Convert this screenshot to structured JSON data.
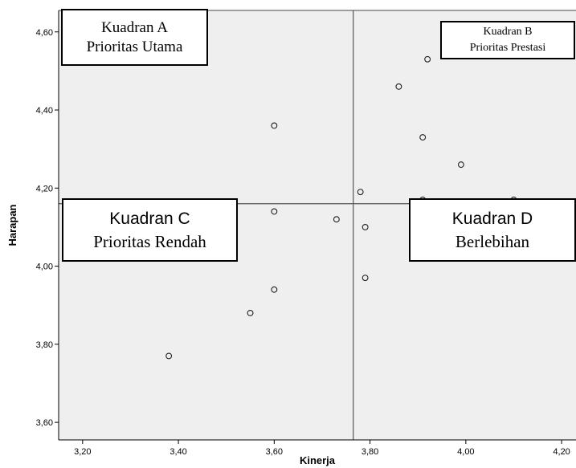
{
  "chart_data": {
    "type": "scatter",
    "xlabel": "Kinerja",
    "ylabel": "Harapan",
    "xlim": [
      3.15,
      4.23
    ],
    "ylim": [
      3.555,
      4.655
    ],
    "xticks": [
      "3,20",
      "3,40",
      "3,60",
      "3,80",
      "4,00",
      "4,20"
    ],
    "xtick_values": [
      3.2,
      3.4,
      3.6,
      3.8,
      4.0,
      4.2
    ],
    "yticks": [
      "3,60",
      "3,80",
      "4,00",
      "4,20",
      "4,40",
      "4,60"
    ],
    "ytick_values": [
      3.6,
      3.8,
      4.0,
      4.2,
      4.4,
      4.6
    ],
    "mean_lines": {
      "x": 3.765,
      "y": 4.16
    },
    "points": [
      {
        "x": 3.38,
        "y": 3.77
      },
      {
        "x": 3.55,
        "y": 3.88
      },
      {
        "x": 3.6,
        "y": 3.94
      },
      {
        "x": 3.6,
        "y": 4.14
      },
      {
        "x": 3.6,
        "y": 4.36
      },
      {
        "x": 3.73,
        "y": 4.12
      },
      {
        "x": 3.78,
        "y": 4.19
      },
      {
        "x": 3.79,
        "y": 4.1
      },
      {
        "x": 3.79,
        "y": 3.97
      },
      {
        "x": 3.86,
        "y": 4.46
      },
      {
        "x": 3.91,
        "y": 4.33
      },
      {
        "x": 3.91,
        "y": 4.17
      },
      {
        "x": 3.92,
        "y": 4.53
      },
      {
        "x": 3.99,
        "y": 4.26
      },
      {
        "x": 4.1,
        "y": 4.17
      }
    ],
    "quadrants": {
      "a": {
        "line1": "Kuadran A",
        "line2": "Prioritas Utama"
      },
      "b": {
        "line1": "Kuadran B",
        "line2": "Prioritas Prestasi"
      },
      "c": {
        "line1": "Kuadran C",
        "line2": "Prioritas Rendah"
      },
      "d": {
        "line1": "Kuadran D",
        "line2": "Berlebihan"
      }
    },
    "colors": {
      "plot_background": "#efefef",
      "marker": "#222222",
      "mean_line": "#555555"
    }
  }
}
